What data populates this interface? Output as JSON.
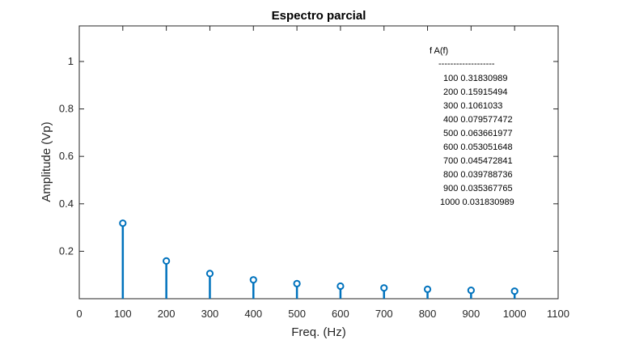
{
  "chart_data": {
    "type": "stem",
    "title": "Espectro parcial",
    "xlabel": "Freq. (Hz)",
    "ylabel": "Amplitude (Vp)",
    "xlim": [
      0,
      1100
    ],
    "ylim": [
      0.0,
      1.15
    ],
    "xticks": [
      0,
      100,
      200,
      300,
      400,
      500,
      600,
      700,
      800,
      900,
      1000,
      1100
    ],
    "xtick_labels": [
      "0",
      "100",
      "200",
      "300",
      "400",
      "500",
      "600",
      "700",
      "800",
      "900",
      "1000",
      "1100"
    ],
    "yticks": [
      0.2,
      0.4,
      0.6,
      0.8,
      1.0
    ],
    "ytick_labels": [
      "0.2",
      "0.4",
      "0.6",
      "0.8",
      "1"
    ],
    "series": [
      {
        "color": "#0072BD",
        "x": [
          100,
          200,
          300,
          400,
          500,
          600,
          700,
          800,
          900,
          1000
        ],
        "y": [
          0.31830989,
          0.15915494,
          0.1061033,
          0.079577472,
          0.063661977,
          0.053051648,
          0.045472841,
          0.039788736,
          0.035367765,
          0.031830989
        ]
      }
    ],
    "grid": false,
    "annotation_table": {
      "header": "f    A(f)",
      "separator": "-------------------",
      "rows": [
        "100    0.31830989",
        "200    0.15915494",
        "300     0.1061033",
        "400    0.079577472",
        "500    0.063661977",
        "600    0.053051648",
        "700    0.045472841",
        "800    0.039788736",
        "900    0.035367765",
        "1000    0.031830989"
      ]
    }
  }
}
